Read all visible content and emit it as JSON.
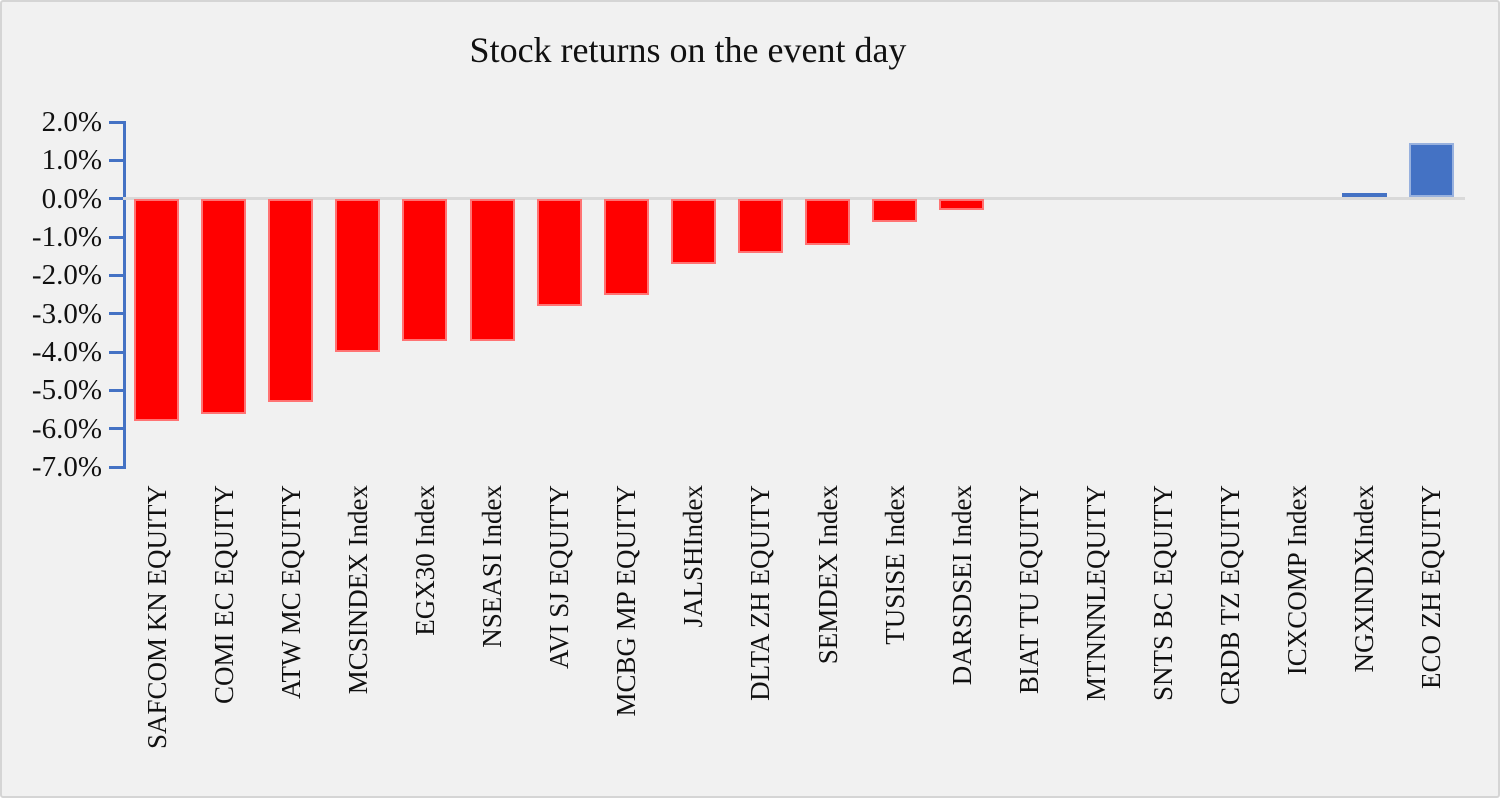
{
  "chart_data": {
    "type": "bar",
    "title": "Stock returns on the event day",
    "categories": [
      "SAFCOM KN EQUITY",
      "COMI EC EQUITY",
      "ATW MC EQUITY",
      "MCSINDEX Index",
      "EGX30 Index",
      "NSEASI Index",
      "AVI SJ EQUITY",
      "MCBG MP EQUITY",
      "JALSHIndex",
      "DLTA ZH EQUITY",
      "SEMDEX Index",
      "TUSISE Index",
      "DARSDSEI Index",
      "BIAT TU EQUITY",
      "MTNNNLEQUITY",
      "SNTS BC EQUITY",
      "CRDB TZ EQUITY",
      "ICXCOMP Index",
      "NGXINDXIndex",
      "ECO ZH EQUITY"
    ],
    "values": [
      -5.8,
      -5.6,
      -5.3,
      -4.0,
      -3.7,
      -3.7,
      -2.8,
      -2.5,
      -1.7,
      -1.4,
      -1.2,
      -0.6,
      -0.3,
      0,
      0,
      0,
      0,
      0,
      0.1,
      1.4
    ],
    "value_unit": "%",
    "xlabel": "",
    "ylabel": "",
    "ylim": [
      -7.0,
      2.0
    ],
    "ytick_step": 1.0,
    "ytick_labels": [
      "2.0%",
      "1.0%",
      "0.0%",
      "-1.0%",
      "-2.0%",
      "-3.0%",
      "-4.0%",
      "-5.0%",
      "-6.0%",
      "-7.0%"
    ],
    "legend": "none",
    "grid": "zero-line-only",
    "colors": {
      "negative_bar": "#ff0000",
      "positive_bar": "#4472c4",
      "axis": "#4472c4",
      "zero_line": "#d9d9d9",
      "background": "#f1f1f1",
      "text": "#111111"
    }
  }
}
